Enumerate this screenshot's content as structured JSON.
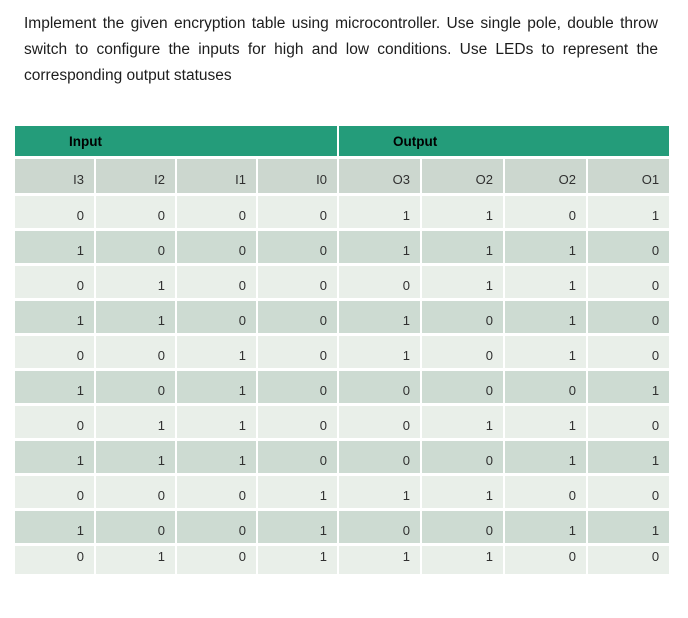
{
  "document": {
    "instruction": "Implement the given encryption table using microcontroller. Use single pole, double throw switch to configure the inputs for high and low conditions. Use LEDs to represent the corresponding output statuses"
  },
  "table": {
    "group_headers": [
      {
        "label": "Input",
        "span": 4
      },
      {
        "label": "Output",
        "span": 4
      }
    ],
    "column_headers": [
      "I3",
      "I2",
      "I1",
      "I0",
      "O3",
      "O2",
      "O2",
      "O1"
    ],
    "rows": [
      [
        "0",
        "0",
        "0",
        "0",
        "1",
        "1",
        "0",
        "1"
      ],
      [
        "1",
        "0",
        "0",
        "0",
        "1",
        "1",
        "1",
        "0"
      ],
      [
        "0",
        "1",
        "0",
        "0",
        "0",
        "1",
        "1",
        "0"
      ],
      [
        "1",
        "1",
        "0",
        "0",
        "1",
        "0",
        "1",
        "0"
      ],
      [
        "0",
        "0",
        "1",
        "0",
        "1",
        "0",
        "1",
        "0"
      ],
      [
        "1",
        "0",
        "1",
        "0",
        "0",
        "0",
        "0",
        "1"
      ],
      [
        "0",
        "1",
        "1",
        "0",
        "0",
        "1",
        "1",
        "0"
      ],
      [
        "1",
        "1",
        "1",
        "0",
        "0",
        "0",
        "1",
        "1"
      ],
      [
        "0",
        "0",
        "0",
        "1",
        "1",
        "1",
        "0",
        "0"
      ],
      [
        "1",
        "0",
        "0",
        "1",
        "0",
        "0",
        "1",
        "1"
      ],
      [
        "0",
        "1",
        "0",
        "1",
        "1",
        "1",
        "0",
        "0"
      ]
    ],
    "colors": {
      "header_bg": "#249c7a",
      "subheader_bg": "#ccd7cf",
      "row_light_bg": "#e9efe9",
      "row_dark_bg": "#cddbd2",
      "gridline": "#ffffff",
      "cell_text": "#303030"
    }
  }
}
